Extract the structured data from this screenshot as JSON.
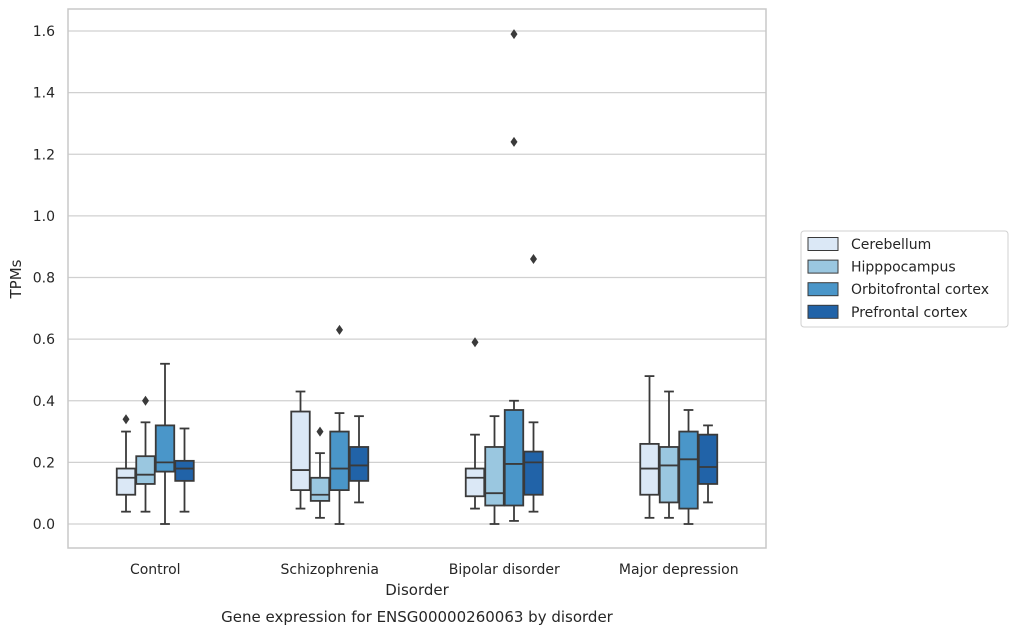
{
  "chart_data": {
    "type": "box",
    "title": "",
    "caption": "Gene expression for ENSG00000260063 by disorder",
    "xlabel": "Disorder",
    "ylabel": "TPMs",
    "ylim": [
      -0.08,
      1.67
    ],
    "yticks": [
      0.0,
      0.2,
      0.4,
      0.6,
      0.8,
      1.0,
      1.2,
      1.4,
      1.6
    ],
    "ytick_labels": [
      "0.0",
      "0.2",
      "0.4",
      "0.6",
      "0.8",
      "1.0",
      "1.2",
      "1.4",
      "1.6"
    ],
    "categories": [
      "Control",
      "Schizophrenia",
      "Bipolar disorder",
      "Major depression"
    ],
    "grid": "horizontal",
    "legend_position": "right",
    "colors": {
      "Cerebellum": "#dbe8f6",
      "Hipppocampus": "#9ac7e0",
      "Orbitofrontal cortex": "#4a96c9",
      "Prefrontal cortex": "#2163a8",
      "line": "#3a3a3a",
      "grid": "#d0d0d0",
      "frame": "#c8c8c8"
    },
    "series": [
      {
        "name": "Cerebellum",
        "boxes": [
          {
            "whislo": 0.04,
            "q1": 0.095,
            "med": 0.15,
            "q3": 0.18,
            "whishi": 0.3,
            "fliers": [
              0.34
            ]
          },
          {
            "whislo": 0.05,
            "q1": 0.11,
            "med": 0.175,
            "q3": 0.365,
            "whishi": 0.43,
            "fliers": []
          },
          {
            "whislo": 0.05,
            "q1": 0.09,
            "med": 0.15,
            "q3": 0.18,
            "whishi": 0.29,
            "fliers": [
              0.59
            ]
          },
          {
            "whislo": 0.02,
            "q1": 0.095,
            "med": 0.18,
            "q3": 0.26,
            "whishi": 0.48,
            "fliers": []
          }
        ]
      },
      {
        "name": "Hipppocampus",
        "boxes": [
          {
            "whislo": 0.04,
            "q1": 0.13,
            "med": 0.16,
            "q3": 0.22,
            "whishi": 0.33,
            "fliers": [
              0.4
            ]
          },
          {
            "whislo": 0.02,
            "q1": 0.075,
            "med": 0.095,
            "q3": 0.15,
            "whishi": 0.23,
            "fliers": [
              0.3
            ]
          },
          {
            "whislo": 0.0,
            "q1": 0.06,
            "med": 0.1,
            "q3": 0.25,
            "whishi": 0.35,
            "fliers": []
          },
          {
            "whislo": 0.02,
            "q1": 0.07,
            "med": 0.19,
            "q3": 0.25,
            "whishi": 0.43,
            "fliers": []
          }
        ]
      },
      {
        "name": "Orbitofrontal cortex",
        "boxes": [
          {
            "whislo": 0.0,
            "q1": 0.17,
            "med": 0.2,
            "q3": 0.32,
            "whishi": 0.52,
            "fliers": []
          },
          {
            "whislo": 0.0,
            "q1": 0.11,
            "med": 0.18,
            "q3": 0.3,
            "whishi": 0.36,
            "fliers": [
              0.63
            ]
          },
          {
            "whislo": 0.01,
            "q1": 0.06,
            "med": 0.195,
            "q3": 0.37,
            "whishi": 0.4,
            "fliers": [
              1.59,
              1.24
            ]
          },
          {
            "whislo": 0.0,
            "q1": 0.05,
            "med": 0.21,
            "q3": 0.3,
            "whishi": 0.37,
            "fliers": []
          }
        ]
      },
      {
        "name": "Prefrontal cortex",
        "boxes": [
          {
            "whislo": 0.04,
            "q1": 0.14,
            "med": 0.18,
            "q3": 0.205,
            "whishi": 0.31,
            "fliers": []
          },
          {
            "whislo": 0.07,
            "q1": 0.14,
            "med": 0.19,
            "q3": 0.25,
            "whishi": 0.35,
            "fliers": []
          },
          {
            "whislo": 0.04,
            "q1": 0.095,
            "med": 0.2,
            "q3": 0.235,
            "whishi": 0.33,
            "fliers": [
              0.86
            ]
          },
          {
            "whislo": 0.07,
            "q1": 0.13,
            "med": 0.185,
            "q3": 0.29,
            "whishi": 0.32,
            "fliers": []
          }
        ]
      }
    ]
  }
}
